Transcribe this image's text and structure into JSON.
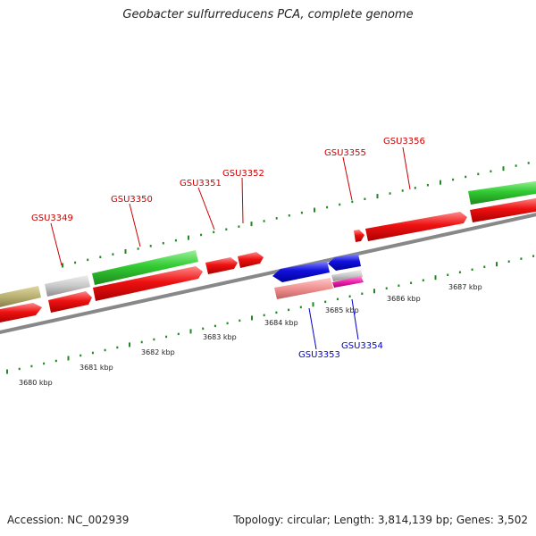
{
  "title": "Geobacter sulfurreducens PCA, complete genome",
  "footer": {
    "accession": "Accession: NC_002939",
    "stats": "Topology: circular; Length: 3,814,139 bp; Genes: 3,502"
  },
  "kbp_labels": [
    "3680 kbp",
    "3681 kbp",
    "3682 kbp",
    "3683 kbp",
    "3684 kbp",
    "3685 kbp",
    "3686 kbp",
    "3687 kbp"
  ],
  "genes_forward": [
    "GSU3349",
    "GSU3350",
    "GSU3351",
    "GSU3352",
    "GSU3355",
    "GSU3356"
  ],
  "genes_reverse": [
    "GSU3353",
    "GSU3354"
  ],
  "colors": {
    "forward_label": "#cc0000",
    "reverse_label": "#0000cc",
    "cds": "#ee1111",
    "gene_green": "#33cc33",
    "gene_gray": "#c8c8c8",
    "gene_olive": "#b8b070",
    "cds_reverse": "#1111dd",
    "cds_pink": "#f09090",
    "cds_magenta": "#ee22aa",
    "tick": "#228822",
    "backbone": "#888888"
  }
}
